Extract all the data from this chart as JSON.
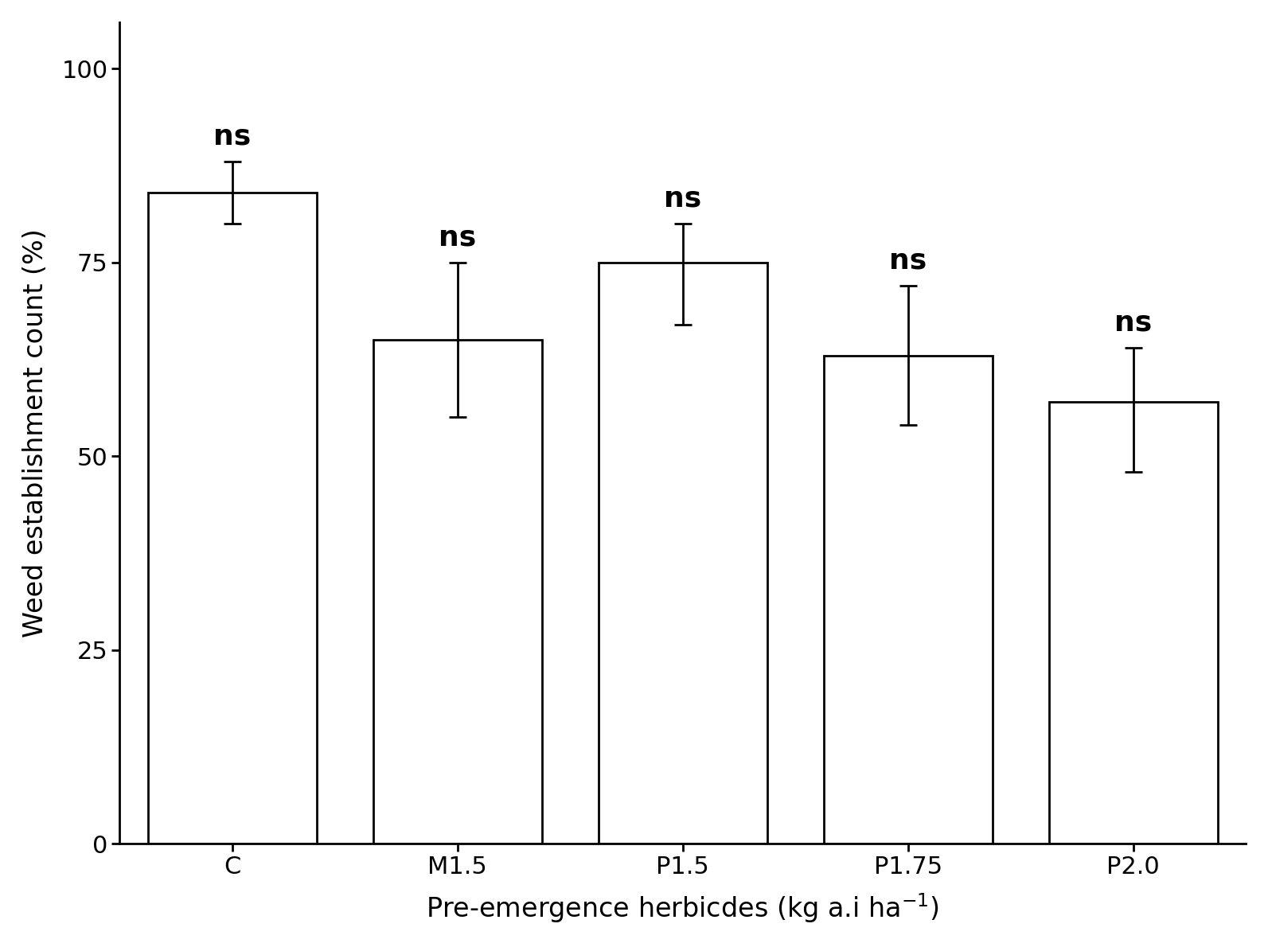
{
  "categories": [
    "C",
    "M1.5",
    "P1.5",
    "P1.75",
    "P2.0"
  ],
  "values": [
    84,
    65,
    75,
    63,
    57
  ],
  "error_upper": [
    4,
    10,
    5,
    9,
    7
  ],
  "error_lower": [
    4,
    10,
    8,
    9,
    9
  ],
  "annotations": [
    "ns",
    "ns",
    "ns",
    "ns",
    "ns"
  ],
  "ylabel": "Weed establishment count (%)",
  "xlabel": "Pre-emergence herbicdes (kg a.i ha",
  "ylim": [
    0,
    106
  ],
  "yticks": [
    0,
    25,
    50,
    75,
    100
  ],
  "bar_color": "white",
  "bar_edgecolor": "black",
  "bar_linewidth": 2.0,
  "error_capsize": 8,
  "error_linewidth": 2.0,
  "annotation_fontsize": 26,
  "axis_label_fontsize": 24,
  "tick_label_fontsize": 22,
  "bar_width": 0.75,
  "background_color": "white",
  "spine_linewidth": 2.0
}
